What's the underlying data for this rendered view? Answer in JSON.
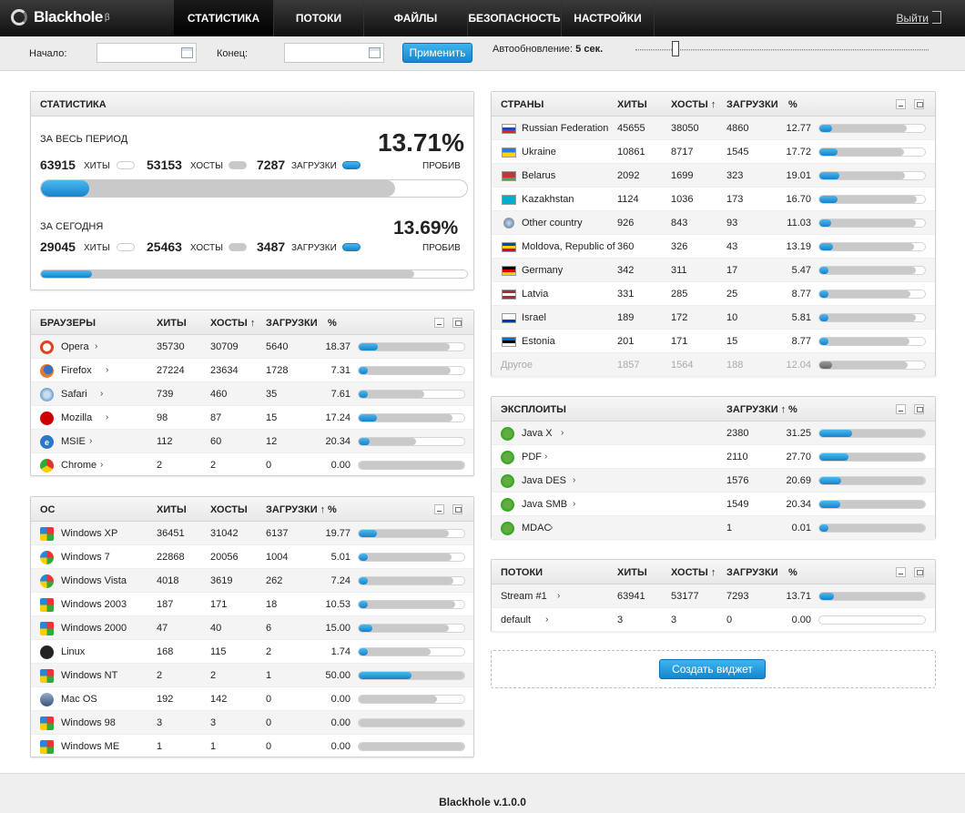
{
  "app": {
    "name": "Blackhole",
    "beta": "β",
    "version": "Blackhole v.1.0.0"
  },
  "nav": {
    "items": [
      "СТАТИСТИКА",
      "ПОТОКИ",
      "ФАЙЛЫ",
      "БЕЗОПАСНОСТЬ",
      "НАСТРОЙКИ"
    ],
    "active": 0,
    "logout": "Выйти"
  },
  "filter": {
    "start_label": "Начало:",
    "start_value": "",
    "end_label": "Конец:",
    "end_value": "",
    "apply": "Применить",
    "autorefresh_label": "Автообновление:",
    "autorefresh_value": "5 сек."
  },
  "stats": {
    "title": "СТАТИСТИКА",
    "total": {
      "label": "ЗА ВЕСЬ ПЕРИОД",
      "hits": "63915",
      "hits_label": "ХИТЫ",
      "hosts": "53153",
      "hosts_label": "ХОСТЫ",
      "loads": "7287",
      "loads_label": "ЗАГРУЗКИ",
      "percent": "13.71%",
      "percent_label": "ПРОБИВ",
      "hosts_ratio": 0.832,
      "loads_ratio": 0.114
    },
    "today": {
      "label": "ЗА СЕГОДНЯ",
      "hits": "29045",
      "hits_label": "ХИТЫ",
      "hosts": "25463",
      "hosts_label": "ХОСТЫ",
      "loads": "3487",
      "loads_label": "ЗАГРУЗКИ",
      "percent": "13.69%",
      "percent_label": "ПРОБИВ",
      "hosts_ratio": 0.877,
      "loads_ratio": 0.12
    }
  },
  "browsers": {
    "columns": [
      "БРАУЗЕРЫ",
      "ХИТЫ",
      "ХОСТЫ ↑",
      "ЗАГРУЗКИ",
      "%"
    ],
    "rows": [
      {
        "name": "Opera",
        "hits": "35730",
        "hosts": "30709",
        "loads": "5640",
        "pct": "18.37",
        "icon": "opera-icon",
        "fill": 0.18,
        "bg": 0.86
      },
      {
        "name": "Firefox",
        "hits": "27224",
        "hosts": "23634",
        "loads": "1728",
        "pct": "7.31",
        "icon": "firefox-icon",
        "fill": 0.07,
        "bg": 0.87
      },
      {
        "name": "Safari",
        "hits": "739",
        "hosts": "460",
        "loads": "35",
        "pct": "7.61",
        "icon": "safari-icon",
        "fill": 0.08,
        "bg": 0.62
      },
      {
        "name": "Mozilla",
        "hits": "98",
        "hosts": "87",
        "loads": "15",
        "pct": "17.24",
        "icon": "mozilla-icon",
        "fill": 0.17,
        "bg": 0.89
      },
      {
        "name": "MSIE",
        "hits": "112",
        "hosts": "60",
        "loads": "12",
        "pct": "20.34",
        "icon": "msie-icon",
        "fill": 0.1,
        "bg": 0.54
      },
      {
        "name": "Chrome",
        "hits": "2",
        "hosts": "2",
        "loads": "0",
        "pct": "0.00",
        "icon": "chrome-icon",
        "fill": 0,
        "bg": 1
      }
    ]
  },
  "os": {
    "columns": [
      "ОС",
      "ХИТЫ",
      "ХОСТЫ",
      "ЗАГРУЗКИ ↑",
      "%"
    ],
    "rows": [
      {
        "name": "Windows XP",
        "hits": "36451",
        "hosts": "31042",
        "loads": "6137",
        "pct": "19.77",
        "icon": "windows-xp-icon",
        "fill": 0.17,
        "bg": 0.85
      },
      {
        "name": "Windows 7",
        "hits": "22868",
        "hosts": "20056",
        "loads": "1004",
        "pct": "5.01",
        "icon": "windows-7-icon",
        "fill": 0.05,
        "bg": 0.88
      },
      {
        "name": "Windows Vista",
        "hits": "4018",
        "hosts": "3619",
        "loads": "262",
        "pct": "7.24",
        "icon": "windows-vista-icon",
        "fill": 0.07,
        "bg": 0.9
      },
      {
        "name": "Windows 2003",
        "hits": "187",
        "hosts": "171",
        "loads": "18",
        "pct": "10.53",
        "icon": "windows-2003-icon",
        "fill": 0.09,
        "bg": 0.91
      },
      {
        "name": "Windows 2000",
        "hits": "47",
        "hosts": "40",
        "loads": "6",
        "pct": "15.00",
        "icon": "windows-2000-icon",
        "fill": 0.13,
        "bg": 0.85
      },
      {
        "name": "Linux",
        "hits": "168",
        "hosts": "115",
        "loads": "2",
        "pct": "1.74",
        "icon": "linux-icon",
        "fill": 0.02,
        "bg": 0.68
      },
      {
        "name": "Windows NT",
        "hits": "2",
        "hosts": "2",
        "loads": "1",
        "pct": "50.00",
        "icon": "windows-nt-icon",
        "fill": 0.5,
        "bg": 1
      },
      {
        "name": "Mac OS",
        "hits": "192",
        "hosts": "142",
        "loads": "0",
        "pct": "0.00",
        "icon": "mac-os-icon",
        "fill": 0,
        "bg": 0.74
      },
      {
        "name": "Windows 98",
        "hits": "3",
        "hosts": "3",
        "loads": "0",
        "pct": "0.00",
        "icon": "windows-98-icon",
        "fill": 0,
        "bg": 1
      },
      {
        "name": "Windows ME",
        "hits": "1",
        "hosts": "1",
        "loads": "0",
        "pct": "0.00",
        "icon": "windows-me-icon",
        "fill": 0,
        "bg": 1
      }
    ]
  },
  "countries": {
    "columns": [
      "СТРАНЫ",
      "ХИТЫ",
      "ХОСТЫ ↑",
      "ЗАГРУЗКИ",
      "%"
    ],
    "rows": [
      {
        "name": "Russian Federation",
        "hits": "45655",
        "hosts": "38050",
        "loads": "4860",
        "pct": "12.77",
        "flag": [
          "#fff",
          "#2244bb",
          "#d22"
        ],
        "fill": 0.12,
        "bg": 0.83
      },
      {
        "name": "Ukraine",
        "hits": "10861",
        "hosts": "8717",
        "loads": "1545",
        "pct": "17.72",
        "flag": [
          "#2a7ae2",
          "#ffd500"
        ],
        "fill": 0.17,
        "bg": 0.8
      },
      {
        "name": "Belarus",
        "hits": "2092",
        "hosts": "1699",
        "loads": "323",
        "pct": "19.01",
        "flag": [
          "#c8313e",
          "#c8313e",
          "#4aa657"
        ],
        "fill": 0.19,
        "bg": 0.81
      },
      {
        "name": "Kazakhstan",
        "hits": "1124",
        "hosts": "1036",
        "loads": "173",
        "pct": "16.70",
        "flag": [
          "#00afca",
          "#00afca"
        ],
        "fill": 0.17,
        "bg": 0.92
      },
      {
        "name": "Other country",
        "hits": "926",
        "hosts": "843",
        "loads": "93",
        "pct": "11.03",
        "flag": [
          "globe"
        ],
        "fill": 0.11,
        "bg": 0.91
      },
      {
        "name": "Moldova, Republic of",
        "hits": "360",
        "hosts": "326",
        "loads": "43",
        "pct": "13.19",
        "flag": [
          "#0046ae",
          "#ffd200",
          "#cc092f"
        ],
        "fill": 0.13,
        "bg": 0.9
      },
      {
        "name": "Germany",
        "hits": "342",
        "hosts": "311",
        "loads": "17",
        "pct": "5.47",
        "flag": [
          "#000",
          "#dd0000",
          "#ffce00"
        ],
        "fill": 0.05,
        "bg": 0.91
      },
      {
        "name": "Latvia",
        "hits": "331",
        "hosts": "285",
        "loads": "25",
        "pct": "8.77",
        "flag": [
          "#9e3039",
          "#fff",
          "#9e3039"
        ],
        "fill": 0.08,
        "bg": 0.86
      },
      {
        "name": "Israel",
        "hits": "189",
        "hosts": "172",
        "loads": "10",
        "pct": "5.81",
        "flag": [
          "#fff",
          "#fff",
          "#0038b8"
        ],
        "fill": 0.05,
        "bg": 0.91
      },
      {
        "name": "Estonia",
        "hits": "201",
        "hosts": "171",
        "loads": "15",
        "pct": "8.77",
        "flag": [
          "#0072ce",
          "#000",
          "#fff"
        ],
        "fill": 0.08,
        "bg": 0.85
      }
    ],
    "other": {
      "name": "Другое",
      "hits": "1857",
      "hosts": "1564",
      "loads": "188",
      "pct": "12.04",
      "fill": 0.12,
      "bg": 0.84
    }
  },
  "exploits": {
    "columns": [
      "ЭКСПЛОИТЫ",
      "ЗАГРУЗКИ ↑",
      "%"
    ],
    "rows": [
      {
        "name": "Java X",
        "loads": "2380",
        "pct": "31.25",
        "fill": 0.31,
        "bg": 1
      },
      {
        "name": "PDF",
        "loads": "2110",
        "pct": "27.70",
        "fill": 0.28,
        "bg": 1
      },
      {
        "name": "Java DES",
        "loads": "1576",
        "pct": "20.69",
        "fill": 0.21,
        "bg": 1
      },
      {
        "name": "Java SMB",
        "loads": "1549",
        "pct": "20.34",
        "fill": 0.2,
        "bg": 1
      },
      {
        "name": "MDAC",
        "loads": "1",
        "pct": "0.01",
        "fill": 0.02,
        "bg": 1
      }
    ]
  },
  "streams": {
    "columns": [
      "ПОТОКИ",
      "ХИТЫ",
      "ХОСТЫ ↑",
      "ЗАГРУЗКИ",
      "%"
    ],
    "rows": [
      {
        "name": "Stream #1",
        "hits": "63941",
        "hosts": "53177",
        "loads": "7293",
        "pct": "13.71",
        "fill": 0.14,
        "bg": 1
      },
      {
        "name": "default",
        "hits": "3",
        "hosts": "3",
        "loads": "0",
        "pct": "0.00",
        "fill": 0,
        "bg": 0
      }
    ]
  },
  "create_widget": "Создать виджет",
  "colors": {
    "accent": "#1a8fd8",
    "header_dark": "#111111"
  }
}
